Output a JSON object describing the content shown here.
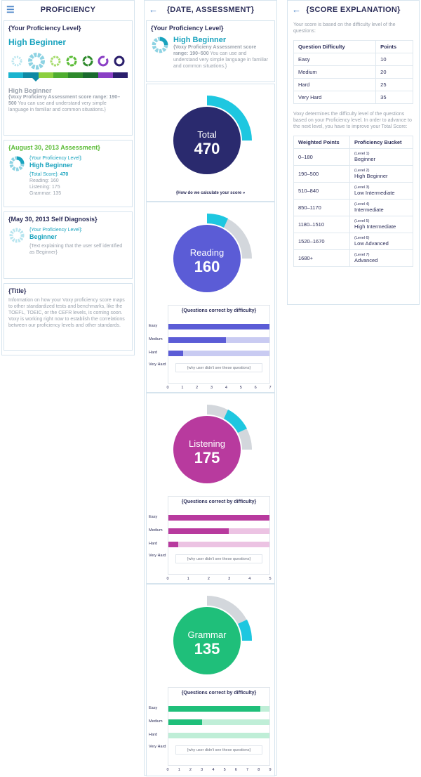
{
  "screen1": {
    "title": "PROFICIENCY",
    "level_card": {
      "heading": "{Your Proficiency Level}",
      "level": "High Beginner",
      "level_repeat": "High Beginner",
      "range_bold": "{Voxy Proficieny Assessment score range: 190–500",
      "range_text": " You can use and understand very simple language in familiar and common situations.}"
    },
    "assessment_card": {
      "heading": "{August 30, 2013 Assessment}",
      "your_level_label": "{Your Proficiency Level}:",
      "level": "High Beginner",
      "total_label": "{Total Score}: ",
      "total_value": "470",
      "reading": "Reading: 160",
      "listening": "Listening: 175",
      "grammar": "Grammar: 135"
    },
    "diagnosis_card": {
      "heading": "{May 30, 2013 Self Diagnosis}",
      "your_level_label": "{Your Proficiency Level}:",
      "level": "Beginner",
      "note": "{Text explaining that the user self identified  as Beginner}"
    },
    "title_card": {
      "heading": "{Title}",
      "text": "Information on how your Voxy proficiency score maps to other standardized tests and benchmarks, like the TOEFL, TOEIC, or the CEFR levels, is coming soon. Voxy is working right now to establish the correlations between our proficiency levels and other standards."
    },
    "level_bar_colors": [
      "#1ab4cf",
      "#0e8aa5",
      "#8ccf3f",
      "#4fad30",
      "#2e8a2c",
      "#1a6a2e",
      "#8a3fc5",
      "#2a1e6b"
    ]
  },
  "screen2": {
    "title": "{DATE, ASSESSMENT}",
    "level_heading": "{Your Proficiency Level}",
    "level": "High Beginner",
    "level_range_bold": "{Voxy Proficieny Assessment score range: 190–500",
    "level_range_text": " You can use and understand very simple language in familiar and common situations.}",
    "total": {
      "name": "Total",
      "value": "470",
      "link": "{How do we calculate your score »"
    },
    "reading": {
      "name": "Reading",
      "value": "160"
    },
    "listening": {
      "name": "Listening",
      "value": "175"
    },
    "grammar": {
      "name": "Grammar",
      "value": "135"
    },
    "chart_title": "{Questions correct by difficulty}",
    "row_labels": [
      "Easy",
      "Medium",
      "Hard"
    ],
    "very_hard_label": "Very Hard",
    "unseen_note": "{why user didn't see these questions}"
  },
  "screen3": {
    "title": "{SCORE EXPLANATION}",
    "intro": "Your score is based on the difficulty level of the questions:",
    "points_table": {
      "headers": [
        "Question Difficulty",
        "Points"
      ],
      "rows": [
        [
          "Easy",
          "10"
        ],
        [
          "Medium",
          "20"
        ],
        [
          "Hard",
          "25"
        ],
        [
          "Very Hard",
          "35"
        ]
      ]
    },
    "mid_text": "Voxy determines the difficulty level of the questions based on your Proficiency level. In order to advance to the next level, you have to improve your Total Score:",
    "bucket_table": {
      "headers": [
        "Weighted Points",
        "Proficiency Bucket"
      ],
      "rows": [
        [
          "0–180",
          "(Level 1)",
          "Beginner"
        ],
        [
          "190–500",
          "(Level 2)",
          "High Beginner"
        ],
        [
          "510–840",
          "(Level 3)",
          "Low Intermediate"
        ],
        [
          "850–1170",
          "(Level 4)",
          "Intermediate"
        ],
        [
          "1180–1510",
          "(Level 5)",
          "High Intermediate"
        ],
        [
          "1520–1670",
          "(Level 6)",
          "Low Advanced"
        ],
        [
          "1680+",
          "(Level 7)",
          "Advanced"
        ]
      ]
    }
  },
  "chart_data": [
    {
      "type": "bar",
      "title": "{Questions correct by difficulty}",
      "categories": [
        "Easy",
        "Medium",
        "Hard"
      ],
      "series": [
        {
          "values": [
            7,
            4,
            1
          ]
        }
      ],
      "xlim": [
        0,
        7
      ],
      "xticks": [
        "0",
        "1",
        "2",
        "3",
        "4",
        "5",
        "6",
        "7"
      ],
      "color": "#5b5cd6",
      "track": "#c9cbf2"
    },
    {
      "type": "bar",
      "title": "{Questions correct by difficulty}",
      "categories": [
        "Easy",
        "Medium",
        "Hard"
      ],
      "series": [
        {
          "values": [
            5,
            3,
            0.5
          ]
        }
      ],
      "xlim": [
        0,
        5
      ],
      "xticks": [
        "0",
        "1",
        "2",
        "3",
        "4",
        "5"
      ],
      "color": "#b83a9e",
      "track": "#ecc3e3"
    },
    {
      "type": "bar",
      "title": "{Questions correct by difficulty}",
      "categories": [
        "Easy",
        "Medium",
        "Hard"
      ],
      "series": [
        {
          "values": [
            8.2,
            3,
            0
          ]
        }
      ],
      "xlim": [
        0,
        9
      ],
      "xticks": [
        "0",
        "1",
        "2",
        "3",
        "4",
        "5",
        "6",
        "7",
        "8",
        "9"
      ],
      "color": "#1fbf7a",
      "track": "#bfeed7"
    }
  ]
}
